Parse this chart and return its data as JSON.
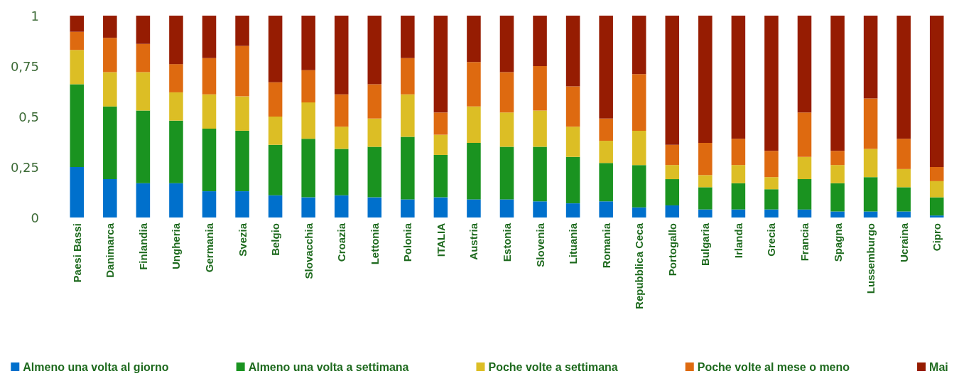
{
  "chart_data": {
    "type": "bar",
    "stacked": true,
    "legend": "bottom",
    "grid": false,
    "categories": [
      "Paesi Bassi",
      "Danimarca",
      "Finlandia",
      "Ungheria",
      "Germania",
      "Svezia",
      "Belgio",
      "Slovacchia",
      "Croazia",
      "Lettonia",
      "Polonia",
      "ITALIA",
      "Austria",
      "Estonia",
      "Slovenia",
      "Lituania",
      "Romania",
      "Repubblica Ceca",
      "Portogallo",
      "Bulgaria",
      "Irlanda",
      "Grecia",
      "Francia",
      "Spagna",
      "Lussemburgo",
      "Ucraina",
      "Cipro"
    ],
    "ylim": [
      0,
      1
    ],
    "yticks": [
      0,
      {
        "value": 0.25,
        "label": "0,25"
      },
      {
        "value": 0.5,
        "label": "0,5"
      },
      {
        "value": 0.75,
        "label": "0,75"
      },
      1
    ],
    "series": [
      {
        "name": "Almeno una volta al giorno",
        "color": "#0070cc",
        "values": [
          0.25,
          0.19,
          0.17,
          0.17,
          0.13,
          0.13,
          0.11,
          0.1,
          0.11,
          0.1,
          0.09,
          0.1,
          0.09,
          0.09,
          0.08,
          0.07,
          0.08,
          0.05,
          0.06,
          0.04,
          0.04,
          0.04,
          0.04,
          0.03,
          0.03,
          0.03,
          0.01
        ]
      },
      {
        "name": "Almeno una volta a settimana",
        "color": "#1a9320",
        "values": [
          0.41,
          0.36,
          0.36,
          0.31,
          0.31,
          0.3,
          0.25,
          0.29,
          0.23,
          0.25,
          0.31,
          0.21,
          0.28,
          0.26,
          0.27,
          0.23,
          0.19,
          0.21,
          0.13,
          0.11,
          0.13,
          0.1,
          0.15,
          0.14,
          0.17,
          0.12,
          0.09
        ]
      },
      {
        "name": "Poche volte a settimana",
        "color": "#dcbe25",
        "values": [
          0.17,
          0.17,
          0.19,
          0.14,
          0.17,
          0.17,
          0.14,
          0.18,
          0.11,
          0.14,
          0.21,
          0.1,
          0.18,
          0.17,
          0.18,
          0.15,
          0.11,
          0.17,
          0.07,
          0.06,
          0.09,
          0.06,
          0.11,
          0.09,
          0.14,
          0.09,
          0.08
        ]
      },
      {
        "name": "Poche volte al mese o meno",
        "color": "#de6a10",
        "values": [
          0.09,
          0.17,
          0.14,
          0.14,
          0.18,
          0.25,
          0.17,
          0.16,
          0.16,
          0.17,
          0.18,
          0.11,
          0.22,
          0.2,
          0.22,
          0.2,
          0.11,
          0.28,
          0.1,
          0.16,
          0.13,
          0.13,
          0.22,
          0.07,
          0.25,
          0.15,
          0.07
        ]
      },
      {
        "name": "Mai",
        "color": "#961c02",
        "values": [
          0.08,
          0.11,
          0.14,
          0.24,
          0.21,
          0.15,
          0.33,
          0.27,
          0.39,
          0.34,
          0.21,
          0.48,
          0.23,
          0.28,
          0.25,
          0.35,
          0.51,
          0.29,
          0.64,
          0.63,
          0.61,
          0.67,
          0.48,
          0.67,
          0.41,
          0.61,
          0.75
        ]
      }
    ]
  }
}
